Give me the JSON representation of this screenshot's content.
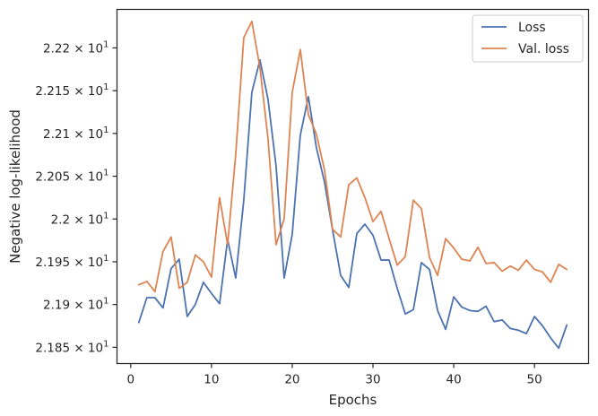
{
  "chart_data": {
    "type": "line",
    "title": "",
    "xlabel": "Epochs",
    "ylabel": "Negative log-likelihood",
    "xlim": [
      -1.7,
      56.7
    ],
    "ylim": [
      21.831,
      22.245
    ],
    "x_ticks": [
      0,
      10,
      20,
      30,
      40,
      50
    ],
    "x_tick_labels": [
      "0",
      "10",
      "20",
      "30",
      "40",
      "50"
    ],
    "y_ticks": [
      21.85,
      21.9,
      21.95,
      22.0,
      22.05,
      22.1,
      22.15,
      22.2
    ],
    "y_tick_labels": [
      {
        "mantissa": "2.185",
        "exp": "1"
      },
      {
        "mantissa": "2.19",
        "exp": "1"
      },
      {
        "mantissa": "2.195",
        "exp": "1"
      },
      {
        "mantissa": "2.2",
        "exp": "1"
      },
      {
        "mantissa": "2.205",
        "exp": "1"
      },
      {
        "mantissa": "2.21",
        "exp": "1"
      },
      {
        "mantissa": "2.215",
        "exp": "1"
      },
      {
        "mantissa": "2.22",
        "exp": "1"
      }
    ],
    "grid": false,
    "legend_position": "top-right",
    "x": [
      1,
      2,
      3,
      4,
      5,
      6,
      7,
      8,
      9,
      10,
      11,
      12,
      13,
      14,
      15,
      16,
      17,
      18,
      19,
      20,
      21,
      22,
      23,
      24,
      25,
      26,
      27,
      28,
      29,
      30,
      31,
      32,
      33,
      34,
      35,
      36,
      37,
      38,
      39,
      40,
      41,
      42,
      43,
      44,
      45,
      46,
      47,
      48,
      49,
      50,
      51,
      52,
      53,
      54
    ],
    "series": [
      {
        "name": "Loss",
        "color": "#4c72b0",
        "values": [
          21.879,
          21.908,
          21.908,
          21.896,
          21.942,
          21.953,
          21.886,
          21.9,
          21.926,
          21.913,
          21.901,
          21.976,
          21.931,
          22.022,
          22.148,
          22.186,
          22.14,
          22.062,
          21.931,
          21.982,
          22.098,
          22.143,
          22.083,
          22.043,
          21.987,
          21.934,
          21.92,
          21.983,
          21.994,
          21.981,
          21.952,
          21.952,
          21.919,
          21.889,
          21.894,
          21.949,
          21.941,
          21.893,
          21.871,
          21.909,
          21.897,
          21.893,
          21.892,
          21.898,
          21.88,
          21.882,
          21.872,
          21.87,
          21.866,
          21.886,
          21.875,
          21.861,
          21.849,
          21.876
        ]
      },
      {
        "name": "Val. loss",
        "color": "#dd8452",
        "values": [
          21.923,
          21.927,
          21.915,
          21.962,
          21.979,
          21.919,
          21.926,
          21.958,
          21.95,
          21.932,
          22.025,
          21.97,
          22.075,
          22.212,
          22.231,
          22.177,
          22.094,
          21.97,
          22.0,
          22.148,
          22.198,
          22.122,
          22.099,
          22.057,
          21.988,
          21.979,
          22.04,
          22.048,
          22.025,
          21.997,
          22.009,
          21.977,
          21.946,
          21.956,
          22.022,
          22.012,
          21.955,
          21.934,
          21.977,
          21.966,
          21.953,
          21.951,
          21.967,
          21.948,
          21.949,
          21.939,
          21.945,
          21.94,
          21.952,
          21.941,
          21.938,
          21.926,
          21.947,
          21.941
        ]
      }
    ]
  }
}
